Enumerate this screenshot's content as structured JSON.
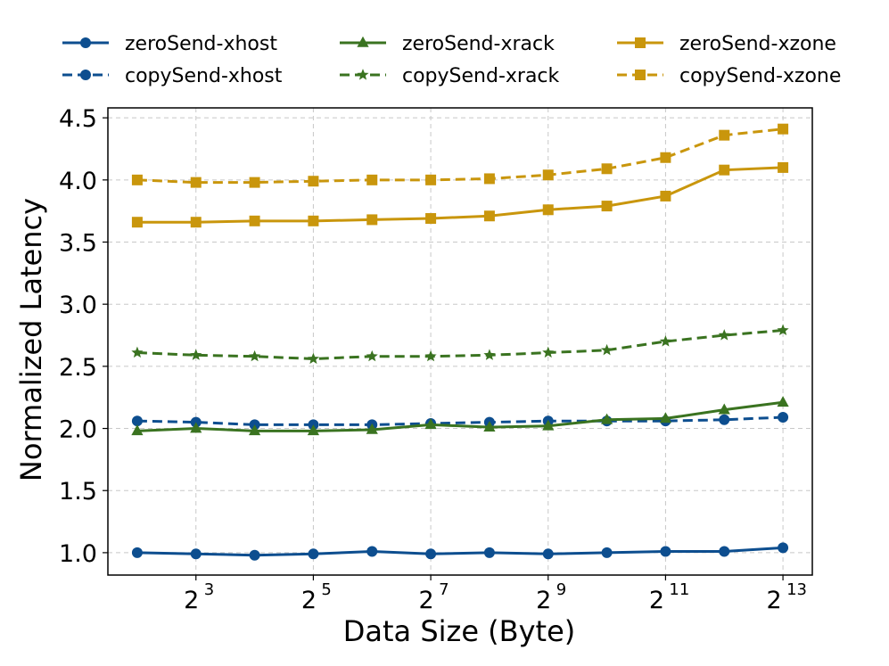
{
  "chart_data": {
    "type": "line",
    "title": "",
    "xlabel": "Data Size (Byte)",
    "ylabel": "Normalized Latency",
    "x": [
      4,
      8,
      16,
      32,
      64,
      128,
      256,
      512,
      1024,
      2048,
      4096,
      8192
    ],
    "x_exponents": [
      2,
      3,
      4,
      5,
      6,
      7,
      8,
      9,
      10,
      11,
      12,
      13
    ],
    "x_scale": "log2",
    "x_tick_base": "2",
    "x_tick_exponents": [
      "3",
      "5",
      "7",
      "9",
      "11",
      "13"
    ],
    "ylim": [
      0.82,
      4.58
    ],
    "y_ticks": [
      "1.0",
      "1.5",
      "2.0",
      "2.5",
      "3.0",
      "3.5",
      "4.0",
      "4.5"
    ],
    "y_tick_values": [
      1.0,
      1.5,
      2.0,
      2.5,
      3.0,
      3.5,
      4.0,
      4.5
    ],
    "grid": true,
    "legend_position": "top",
    "series": [
      {
        "name": "zeroSend-xhost",
        "color": "#0d4e8f",
        "marker": "circle",
        "dash": "solid",
        "values": [
          1.0,
          0.99,
          0.98,
          0.99,
          1.01,
          0.99,
          1.0,
          0.99,
          1.0,
          1.01,
          1.01,
          1.04
        ]
      },
      {
        "name": "copySend-xhost",
        "color": "#0d4e8f",
        "marker": "circle",
        "dash": "dashed",
        "values": [
          2.06,
          2.05,
          2.03,
          2.03,
          2.03,
          2.04,
          2.05,
          2.06,
          2.06,
          2.06,
          2.07,
          2.09
        ]
      },
      {
        "name": "zeroSend-xrack",
        "color": "#3a7320",
        "marker": "triangle",
        "dash": "solid",
        "values": [
          1.98,
          2.0,
          1.98,
          1.98,
          1.99,
          2.03,
          2.01,
          2.02,
          2.07,
          2.08,
          2.15,
          2.21
        ]
      },
      {
        "name": "copySend-xrack",
        "color": "#3a7320",
        "marker": "star",
        "dash": "dashed",
        "values": [
          2.61,
          2.59,
          2.58,
          2.56,
          2.58,
          2.58,
          2.59,
          2.61,
          2.63,
          2.7,
          2.75,
          2.79
        ]
      },
      {
        "name": "zeroSend-xzone",
        "color": "#c9960c",
        "marker": "square",
        "dash": "solid",
        "values": [
          3.66,
          3.66,
          3.67,
          3.67,
          3.68,
          3.69,
          3.71,
          3.76,
          3.79,
          3.87,
          4.08,
          4.1
        ]
      },
      {
        "name": "copySend-xzone",
        "color": "#c9960c",
        "marker": "square",
        "dash": "dashed",
        "values": [
          4.0,
          3.98,
          3.98,
          3.99,
          4.0,
          4.0,
          4.01,
          4.04,
          4.09,
          4.18,
          4.36,
          4.41
        ]
      }
    ]
  }
}
